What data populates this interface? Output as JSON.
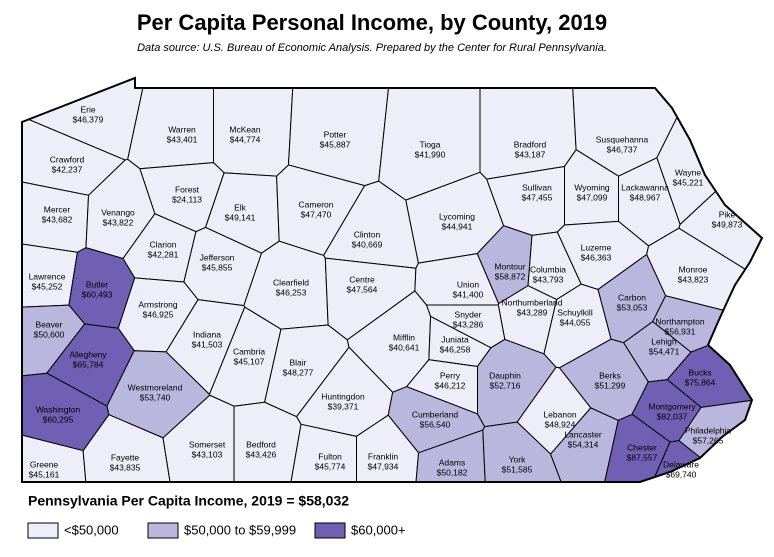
{
  "title": "Per Capita Personal Income, by County, 2019",
  "subtitle": "Data source: U.S. Bureau of Economic Analysis. Prepared by the Center for Rural Pennsylvania.",
  "counties": [
    {
      "name": "Erie",
      "value": 46379,
      "label": "$46,379"
    },
    {
      "name": "Crawford",
      "value": 42237,
      "label": "$42,237"
    },
    {
      "name": "Warren",
      "value": 43401,
      "label": "$43,401"
    },
    {
      "name": "McKean",
      "value": 44774,
      "label": "$44,774"
    },
    {
      "name": "Potter",
      "value": 45887,
      "label": "$45,887"
    },
    {
      "name": "Tioga",
      "value": 41990,
      "label": "$41,990"
    },
    {
      "name": "Bradford",
      "value": 43187,
      "label": "$43,187"
    },
    {
      "name": "Susquehanna",
      "value": 46737,
      "label": "$46,737"
    },
    {
      "name": "Wayne",
      "value": 45221,
      "label": "$45,221"
    },
    {
      "name": "Mercer",
      "value": 43682,
      "label": "$43,682"
    },
    {
      "name": "Venango",
      "value": 43822,
      "label": "$43,822"
    },
    {
      "name": "Forest",
      "value": 24113,
      "label": "$24,113"
    },
    {
      "name": "Elk",
      "value": 49141,
      "label": "$49,141"
    },
    {
      "name": "Cameron",
      "value": 47470,
      "label": "$47,470"
    },
    {
      "name": "Clinton",
      "value": 40669,
      "label": "$40,669"
    },
    {
      "name": "Lycoming",
      "value": 44941,
      "label": "$44,941"
    },
    {
      "name": "Sullivan",
      "value": 47455,
      "label": "$47,455"
    },
    {
      "name": "Wyoming",
      "value": 47099,
      "label": "$47,099"
    },
    {
      "name": "Lackawanna",
      "value": 48967,
      "label": "$48,967"
    },
    {
      "name": "Pike",
      "value": 49873,
      "label": "$49,873"
    },
    {
      "name": "Lawrence",
      "value": 45252,
      "label": "$45,252"
    },
    {
      "name": "Butler",
      "value": 60493,
      "label": "$60,493"
    },
    {
      "name": "Clarion",
      "value": 42281,
      "label": "$42,281"
    },
    {
      "name": "Jefferson",
      "value": 45855,
      "label": "$45,855"
    },
    {
      "name": "Clearfield",
      "value": 46253,
      "label": "$46,253"
    },
    {
      "name": "Centre",
      "value": 47564,
      "label": "$47,564"
    },
    {
      "name": "Union",
      "value": 41400,
      "label": "$41,400"
    },
    {
      "name": "Montour",
      "value": 58872,
      "label": "$58,872"
    },
    {
      "name": "Columbia",
      "value": 43793,
      "label": "$43,793"
    },
    {
      "name": "Luzerne",
      "value": 46363,
      "label": "$46,363"
    },
    {
      "name": "Monroe",
      "value": 43823,
      "label": "$43,823"
    },
    {
      "name": "Beaver",
      "value": 50600,
      "label": "$50,600"
    },
    {
      "name": "Armstrong",
      "value": 46925,
      "label": "$46,925"
    },
    {
      "name": "Indiana",
      "value": 41503,
      "label": "$41,503"
    },
    {
      "name": "Northumberland",
      "value": 43289,
      "label": "$43,289"
    },
    {
      "name": "Snyder",
      "value": 43286,
      "label": "$43,286"
    },
    {
      "name": "Carbon",
      "value": 53053,
      "label": "$53,053"
    },
    {
      "name": "Northampton",
      "value": 56931,
      "label": "$56,931"
    },
    {
      "name": "Allegheny",
      "value": 65784,
      "label": "$65,784"
    },
    {
      "name": "Cambria",
      "value": 45107,
      "label": "$45,107"
    },
    {
      "name": "Blair",
      "value": 48277,
      "label": "$48,277"
    },
    {
      "name": "Mifflin",
      "value": 40641,
      "label": "$40,641"
    },
    {
      "name": "Juniata",
      "value": 46258,
      "label": "$46,258"
    },
    {
      "name": "Schuylkill",
      "value": 44055,
      "label": "$44,055"
    },
    {
      "name": "Lehigh",
      "value": 54471,
      "label": "$54,471"
    },
    {
      "name": "Westmoreland",
      "value": 53740,
      "label": "$53,740"
    },
    {
      "name": "Washington",
      "value": 60295,
      "label": "$60,295"
    },
    {
      "name": "Huntingdon",
      "value": 39371,
      "label": "$39,371"
    },
    {
      "name": "Perry",
      "value": 46212,
      "label": "$46,212"
    },
    {
      "name": "Dauphin",
      "value": 52716,
      "label": "$52,716"
    },
    {
      "name": "Lebanon",
      "value": 48924,
      "label": "$48,924"
    },
    {
      "name": "Berks",
      "value": 51299,
      "label": "$51,299"
    },
    {
      "name": "Bucks",
      "value": 75864,
      "label": "$75,864"
    },
    {
      "name": "Montgomery",
      "value": 82037,
      "label": "$82,037"
    },
    {
      "name": "Philadelphia",
      "value": 57265,
      "label": "$57,265"
    },
    {
      "name": "Cumberland",
      "value": 56540,
      "label": "$56,540"
    },
    {
      "name": "Greene",
      "value": 45161,
      "label": "$45,161"
    },
    {
      "name": "Fayette",
      "value": 43835,
      "label": "$43,835"
    },
    {
      "name": "Somerset",
      "value": 43103,
      "label": "$43,103"
    },
    {
      "name": "Bedford",
      "value": 43426,
      "label": "$43,426"
    },
    {
      "name": "Fulton",
      "value": 45774,
      "label": "$45,774"
    },
    {
      "name": "Franklin",
      "value": 47934,
      "label": "$47,934"
    },
    {
      "name": "Adams",
      "value": 50182,
      "label": "$50,182"
    },
    {
      "name": "York",
      "value": 51585,
      "label": "$51,585"
    },
    {
      "name": "Lancaster",
      "value": 54314,
      "label": "$54,314"
    },
    {
      "name": "Chester",
      "value": 87557,
      "label": "$87,557"
    },
    {
      "name": "Delaware",
      "value": 69740,
      "label": "$69,740"
    }
  ],
  "legend": {
    "title": "Pennsylvania Per Capita Income, 2019 = $58,032",
    "items": [
      {
        "label": "<$50,000",
        "color": "#eeeef8"
      },
      {
        "label": "$50,000 to $59,999",
        "min": 50000,
        "color": "#b9b7de"
      },
      {
        "label": "$60,000+",
        "min": 60000,
        "color": "#7060b4"
      }
    ]
  }
}
